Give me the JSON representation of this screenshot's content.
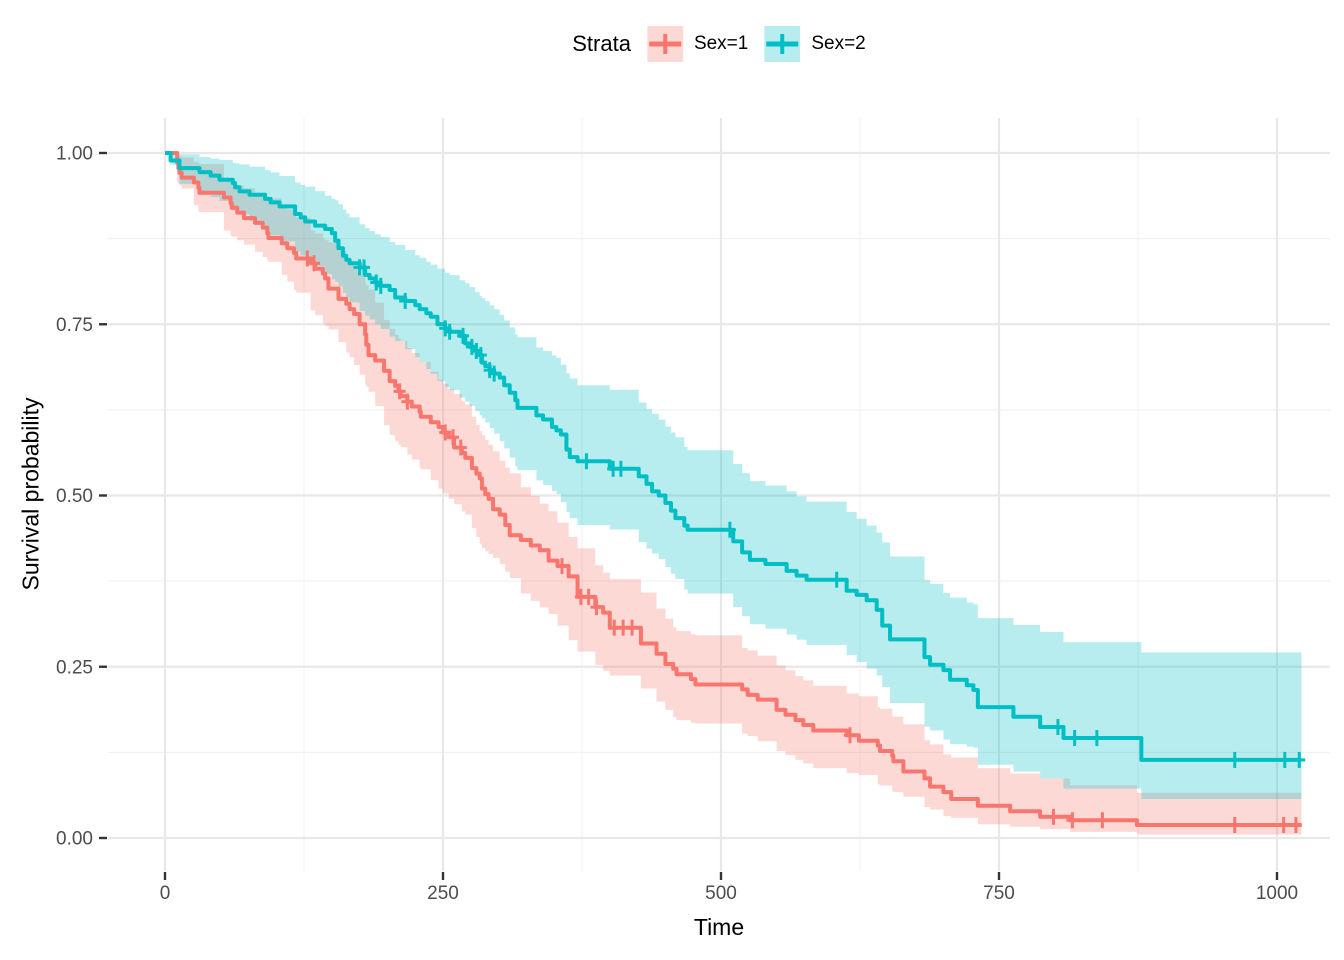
{
  "legend": {
    "title": "Strata",
    "items": [
      {
        "label": "Sex=1",
        "color": "#F8766D"
      },
      {
        "label": "Sex=2",
        "color": "#00BFC4"
      }
    ]
  },
  "axes": {
    "x": {
      "title": "Time"
    },
    "y": {
      "title": "Survival probability"
    }
  },
  "style": {
    "band_opacity": 0.28,
    "grid_major_color": "#E8E8E8",
    "grid_minor_color": "#F2F2F2",
    "tick_mark_color": "#333333",
    "tick_label_color": "#4D4D4D",
    "background": "#FFFFFF"
  },
  "chart_data": {
    "type": "line",
    "subtype": "kaplan-meier-step",
    "title": "",
    "xlabel": "Time",
    "ylabel": "Survival probability",
    "xlim": [
      0,
      1022
    ],
    "ylim": [
      0,
      1
    ],
    "x_major_ticks": [
      0,
      250,
      500,
      750,
      1000
    ],
    "x_tick_labels": [
      "0",
      "250",
      "500",
      "750",
      "1000"
    ],
    "x_minor_gridlines": [
      125,
      375,
      625,
      875
    ],
    "y_major_ticks": [
      1.0,
      0.75,
      0.5,
      0.25,
      0.0
    ],
    "y_tick_labels": [
      "1.00",
      "0.75",
      "0.50",
      "0.25",
      "0.00"
    ],
    "y_minor_gridlines": [
      0.875,
      0.625,
      0.375,
      0.125
    ],
    "grid": "major+minor",
    "legend_position": "top",
    "series": [
      {
        "name": "Sex=1",
        "color": "#F8766D",
        "steps": [
          [
            0,
            1.0
          ],
          [
            11,
            0.986
          ],
          [
            12,
            0.978
          ],
          [
            13,
            0.971
          ],
          [
            15,
            0.964
          ],
          [
            26,
            0.957
          ],
          [
            30,
            0.949
          ],
          [
            31,
            0.942
          ],
          [
            53,
            0.935
          ],
          [
            59,
            0.927
          ],
          [
            60,
            0.92
          ],
          [
            65,
            0.913
          ],
          [
            71,
            0.905
          ],
          [
            81,
            0.898
          ],
          [
            88,
            0.891
          ],
          [
            92,
            0.883
          ],
          [
            93,
            0.876
          ],
          [
            105,
            0.868
          ],
          [
            110,
            0.861
          ],
          [
            116,
            0.854
          ],
          [
            118,
            0.846
          ],
          [
            131,
            0.839
          ],
          [
            135,
            0.831
          ],
          [
            142,
            0.824
          ],
          [
            144,
            0.817
          ],
          [
            147,
            0.802
          ],
          [
            156,
            0.787
          ],
          [
            163,
            0.78
          ],
          [
            166,
            0.772
          ],
          [
            170,
            0.765
          ],
          [
            175,
            0.75
          ],
          [
            180,
            0.735
          ],
          [
            181,
            0.72
          ],
          [
            183,
            0.705
          ],
          [
            189,
            0.697
          ],
          [
            197,
            0.682
          ],
          [
            202,
            0.667
          ],
          [
            207,
            0.66
          ],
          [
            210,
            0.652
          ],
          [
            212,
            0.645
          ],
          [
            218,
            0.637
          ],
          [
            222,
            0.63
          ],
          [
            229,
            0.622
          ],
          [
            230,
            0.615
          ],
          [
            239,
            0.607
          ],
          [
            246,
            0.6
          ],
          [
            250,
            0.592
          ],
          [
            255,
            0.585
          ],
          [
            260,
            0.57
          ],
          [
            267,
            0.562
          ],
          [
            270,
            0.555
          ],
          [
            276,
            0.54
          ],
          [
            280,
            0.532
          ],
          [
            283,
            0.525
          ],
          [
            285,
            0.51
          ],
          [
            288,
            0.502
          ],
          [
            291,
            0.495
          ],
          [
            295,
            0.48
          ],
          [
            301,
            0.472
          ],
          [
            306,
            0.457
          ],
          [
            310,
            0.442
          ],
          [
            320,
            0.435
          ],
          [
            329,
            0.427
          ],
          [
            337,
            0.42
          ],
          [
            345,
            0.405
          ],
          [
            353,
            0.397
          ],
          [
            363,
            0.382
          ],
          [
            371,
            0.352
          ],
          [
            387,
            0.337
          ],
          [
            394,
            0.329
          ],
          [
            400,
            0.307
          ],
          [
            428,
            0.284
          ],
          [
            442,
            0.269
          ],
          [
            450,
            0.254
          ],
          [
            457,
            0.247
          ],
          [
            460,
            0.239
          ],
          [
            473,
            0.232
          ],
          [
            477,
            0.224
          ],
          [
            519,
            0.217
          ],
          [
            524,
            0.209
          ],
          [
            533,
            0.202
          ],
          [
            550,
            0.187
          ],
          [
            558,
            0.18
          ],
          [
            567,
            0.172
          ],
          [
            574,
            0.165
          ],
          [
            583,
            0.157
          ],
          [
            613,
            0.15
          ],
          [
            624,
            0.142
          ],
          [
            641,
            0.135
          ],
          [
            643,
            0.127
          ],
          [
            654,
            0.12
          ],
          [
            655,
            0.112
          ],
          [
            664,
            0.097
          ],
          [
            683,
            0.087
          ],
          [
            688,
            0.075
          ],
          [
            700,
            0.067
          ],
          [
            707,
            0.057
          ],
          [
            731,
            0.047
          ],
          [
            760,
            0.039
          ],
          [
            787,
            0.031
          ],
          [
            814,
            0.026
          ],
          [
            874,
            0.019
          ],
          [
            1022,
            0.019
          ]
        ],
        "censor_times": [
          128,
          134,
          211,
          218,
          252,
          259,
          266,
          357,
          374,
          381,
          388,
          404,
          412,
          420,
          616,
          799,
          816,
          843,
          962,
          1006,
          1017
        ],
        "ci": [
          [
            0,
            1,
            1
          ],
          [
            11,
            0.957,
            0.996
          ],
          [
            30,
            0.915,
            0.985
          ],
          [
            60,
            0.878,
            0.956
          ],
          [
            90,
            0.846,
            0.936
          ],
          [
            105,
            0.822,
            0.925
          ],
          [
            130,
            0.772,
            0.888
          ],
          [
            150,
            0.737,
            0.866
          ],
          [
            166,
            0.702,
            0.842
          ],
          [
            180,
            0.662,
            0.81
          ],
          [
            200,
            0.592,
            0.747
          ],
          [
            225,
            0.547,
            0.703
          ],
          [
            250,
            0.503,
            0.663
          ],
          [
            270,
            0.472,
            0.633
          ],
          [
            285,
            0.423,
            0.588
          ],
          [
            300,
            0.402,
            0.553
          ],
          [
            320,
            0.357,
            0.512
          ],
          [
            345,
            0.327,
            0.477
          ],
          [
            371,
            0.272,
            0.423
          ],
          [
            400,
            0.237,
            0.378
          ],
          [
            430,
            0.217,
            0.357
          ],
          [
            460,
            0.172,
            0.302
          ],
          [
            477,
            0.167,
            0.296
          ],
          [
            520,
            0.152,
            0.277
          ],
          [
            550,
            0.127,
            0.252
          ],
          [
            583,
            0.102,
            0.222
          ],
          [
            624,
            0.092,
            0.207
          ],
          [
            655,
            0.067,
            0.177
          ],
          [
            700,
            0.032,
            0.122
          ],
          [
            731,
            0.02,
            0.102
          ],
          [
            787,
            0.013,
            0.087
          ],
          [
            814,
            0.009,
            0.077
          ],
          [
            874,
            0.005,
            0.066
          ],
          [
            1022,
            0.005,
            0.066
          ]
        ]
      },
      {
        "name": "Sex=2",
        "color": "#00BFC4",
        "steps": [
          [
            0,
            1.0
          ],
          [
            5,
            0.989
          ],
          [
            13,
            0.978
          ],
          [
            31,
            0.972
          ],
          [
            41,
            0.967
          ],
          [
            49,
            0.961
          ],
          [
            61,
            0.956
          ],
          [
            63,
            0.95
          ],
          [
            67,
            0.944
          ],
          [
            76,
            0.939
          ],
          [
            90,
            0.933
          ],
          [
            95,
            0.928
          ],
          [
            103,
            0.922
          ],
          [
            117,
            0.911
          ],
          [
            122,
            0.906
          ],
          [
            126,
            0.9
          ],
          [
            135,
            0.894
          ],
          [
            144,
            0.889
          ],
          [
            150,
            0.883
          ],
          [
            153,
            0.872
          ],
          [
            156,
            0.861
          ],
          [
            160,
            0.85
          ],
          [
            163,
            0.844
          ],
          [
            166,
            0.839
          ],
          [
            175,
            0.833
          ],
          [
            180,
            0.822
          ],
          [
            184,
            0.817
          ],
          [
            189,
            0.811
          ],
          [
            194,
            0.806
          ],
          [
            202,
            0.8
          ],
          [
            207,
            0.789
          ],
          [
            216,
            0.784
          ],
          [
            225,
            0.778
          ],
          [
            229,
            0.772
          ],
          [
            235,
            0.766
          ],
          [
            239,
            0.761
          ],
          [
            245,
            0.75
          ],
          [
            252,
            0.744
          ],
          [
            256,
            0.739
          ],
          [
            265,
            0.733
          ],
          [
            270,
            0.722
          ],
          [
            274,
            0.717
          ],
          [
            279,
            0.711
          ],
          [
            283,
            0.705
          ],
          [
            285,
            0.694
          ],
          [
            288,
            0.689
          ],
          [
            292,
            0.683
          ],
          [
            296,
            0.678
          ],
          [
            301,
            0.672
          ],
          [
            305,
            0.661
          ],
          [
            310,
            0.65
          ],
          [
            315,
            0.639
          ],
          [
            317,
            0.628
          ],
          [
            334,
            0.617
          ],
          [
            340,
            0.611
          ],
          [
            348,
            0.6
          ],
          [
            352,
            0.595
          ],
          [
            356,
            0.589
          ],
          [
            361,
            0.567
          ],
          [
            364,
            0.556
          ],
          [
            371,
            0.55
          ],
          [
            400,
            0.539
          ],
          [
            426,
            0.528
          ],
          [
            433,
            0.517
          ],
          [
            438,
            0.506
          ],
          [
            444,
            0.5
          ],
          [
            450,
            0.489
          ],
          [
            455,
            0.478
          ],
          [
            459,
            0.467
          ],
          [
            467,
            0.456
          ],
          [
            470,
            0.45
          ],
          [
            511,
            0.433
          ],
          [
            519,
            0.417
          ],
          [
            526,
            0.406
          ],
          [
            540,
            0.4
          ],
          [
            559,
            0.39
          ],
          [
            568,
            0.383
          ],
          [
            577,
            0.377
          ],
          [
            613,
            0.361
          ],
          [
            622,
            0.355
          ],
          [
            631,
            0.347
          ],
          [
            640,
            0.333
          ],
          [
            645,
            0.31
          ],
          [
            652,
            0.29
          ],
          [
            683,
            0.264
          ],
          [
            688,
            0.253
          ],
          [
            700,
            0.245
          ],
          [
            706,
            0.231
          ],
          [
            721,
            0.223
          ],
          [
            727,
            0.216
          ],
          [
            731,
            0.191
          ],
          [
            763,
            0.177
          ],
          [
            787,
            0.162
          ],
          [
            808,
            0.146
          ],
          [
            878,
            0.114
          ],
          [
            1022,
            0.114
          ]
        ],
        "censor_times": [
          175,
          179,
          190,
          194,
          216,
          252,
          256,
          268,
          276,
          280,
          284,
          292,
          296,
          379,
          403,
          410,
          508,
          604,
          803,
          818,
          838,
          962,
          1007,
          1020
        ],
        "ci": [
          [
            0,
            1,
            1
          ],
          [
            13,
            0.955,
            0.998
          ],
          [
            49,
            0.93,
            0.99
          ],
          [
            90,
            0.885,
            0.975
          ],
          [
            126,
            0.846,
            0.951
          ],
          [
            153,
            0.812,
            0.931
          ],
          [
            166,
            0.782,
            0.906
          ],
          [
            184,
            0.757,
            0.886
          ],
          [
            202,
            0.732,
            0.87
          ],
          [
            225,
            0.702,
            0.851
          ],
          [
            245,
            0.667,
            0.831
          ],
          [
            270,
            0.637,
            0.81
          ],
          [
            283,
            0.617,
            0.791
          ],
          [
            300,
            0.582,
            0.766
          ],
          [
            317,
            0.537,
            0.731
          ],
          [
            334,
            0.522,
            0.716
          ],
          [
            352,
            0.502,
            0.701
          ],
          [
            364,
            0.467,
            0.671
          ],
          [
            371,
            0.457,
            0.661
          ],
          [
            415,
            0.447,
            0.651
          ],
          [
            444,
            0.407,
            0.611
          ],
          [
            470,
            0.357,
            0.566
          ],
          [
            511,
            0.337,
            0.546
          ],
          [
            526,
            0.312,
            0.521
          ],
          [
            559,
            0.297,
            0.506
          ],
          [
            577,
            0.282,
            0.491
          ],
          [
            613,
            0.267,
            0.476
          ],
          [
            640,
            0.237,
            0.446
          ],
          [
            652,
            0.197,
            0.411
          ],
          [
            688,
            0.157,
            0.371
          ],
          [
            706,
            0.137,
            0.351
          ],
          [
            727,
            0.132,
            0.341
          ],
          [
            731,
            0.107,
            0.321
          ],
          [
            763,
            0.097,
            0.311
          ],
          [
            787,
            0.087,
            0.301
          ],
          [
            808,
            0.072,
            0.286
          ],
          [
            878,
            0.057,
            0.271
          ],
          [
            1022,
            0.057,
            0.271
          ]
        ]
      }
    ]
  }
}
